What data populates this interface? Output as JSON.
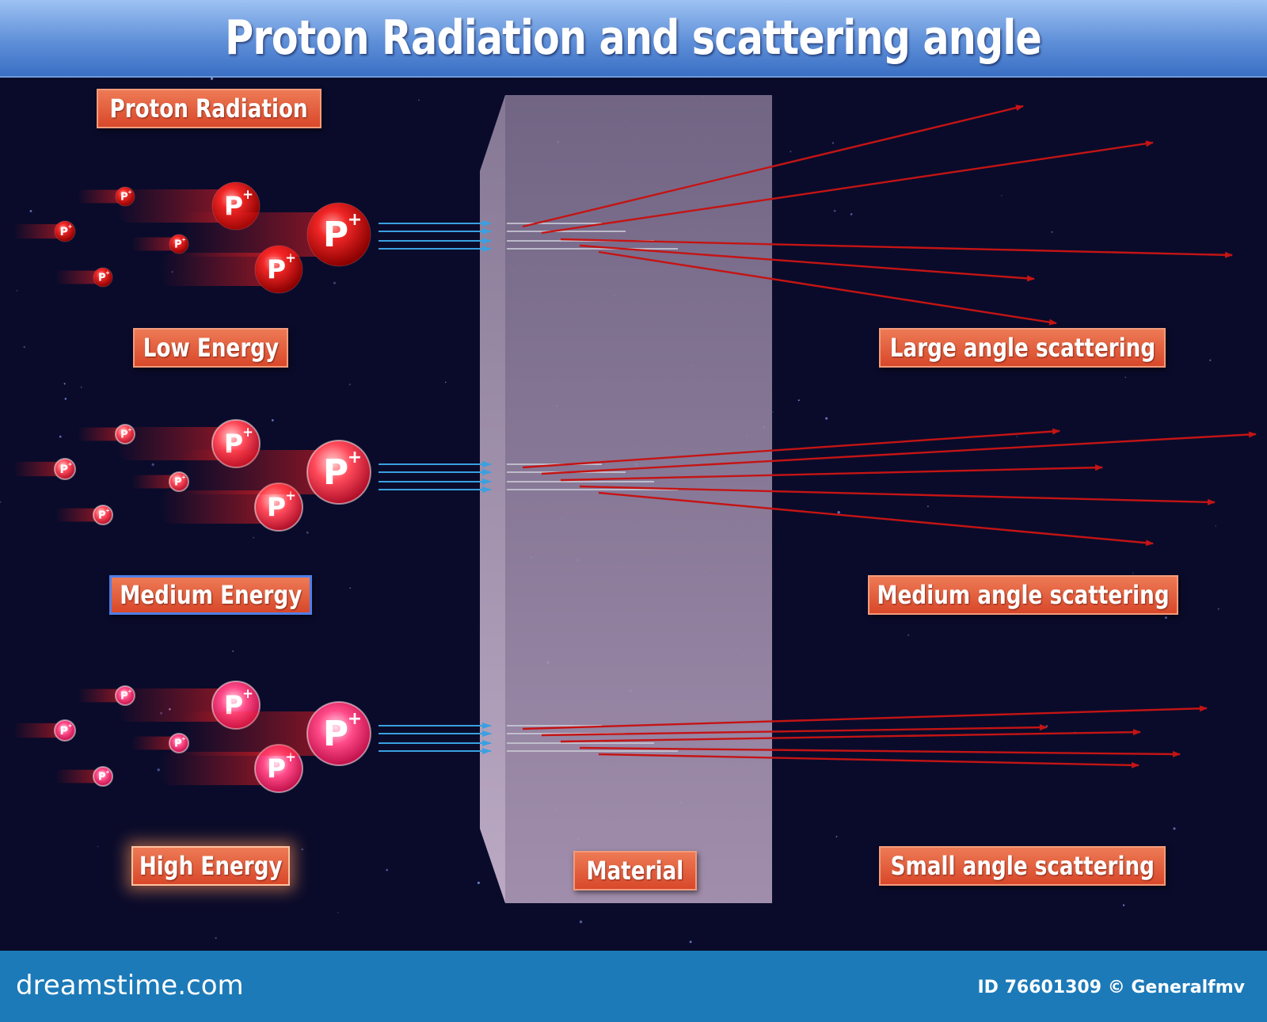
{
  "title": "Proton Radiation and scattering angle",
  "labels": {
    "proton_radiation": "Proton Radiation",
    "low_energy": "Low Energy",
    "medium_energy": "Medium Energy",
    "high_energy": "High Energy",
    "material": "Material",
    "large_angle": "Large angle scattering",
    "medium_angle": "Medium angle scattering",
    "small_angle": "Small angle scattering"
  },
  "proton_glyph": "P",
  "proton_charge": "+",
  "footer": {
    "brand": "dreamstime.com",
    "id_text": "ID 76601309 © Generalfmv"
  },
  "colors": {
    "background": "#0a0b2a",
    "title_bar": "#5e8fd8",
    "tag": "#d8482a",
    "proton": "#e01818",
    "incoming_arrow": "#3aa0e0",
    "scattered_arrow": "#c41414",
    "material": "#9a8aa6",
    "footer": "#1c7ab8"
  }
}
